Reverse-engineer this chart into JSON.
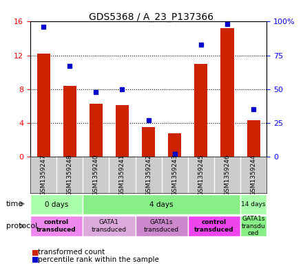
{
  "title": "GDS5368 / A_23_P137366",
  "samples": [
    "GSM1359247",
    "GSM1359248",
    "GSM1359240",
    "GSM1359241",
    "GSM1359242",
    "GSM1359243",
    "GSM1359245",
    "GSM1359246",
    "GSM1359244"
  ],
  "transformed_counts": [
    12.2,
    8.4,
    6.3,
    6.1,
    3.5,
    2.8,
    11.0,
    15.2,
    4.3
  ],
  "percentile_ranks": [
    96,
    67,
    48,
    50,
    27,
    2,
    83,
    98,
    35
  ],
  "ylim_left": [
    0,
    16
  ],
  "ylim_right": [
    0,
    100
  ],
  "yticks_left": [
    0,
    4,
    8,
    12,
    16
  ],
  "yticks_right": [
    0,
    25,
    50,
    75,
    100
  ],
  "ytick_labels_right": [
    "0",
    "25",
    "50",
    "75",
    "100%"
  ],
  "bar_color": "#cc2200",
  "dot_color": "#0000cc",
  "time_groups": [
    {
      "label": "0 days",
      "start": 0,
      "end": 2,
      "color": "#aaffaa"
    },
    {
      "label": "4 days",
      "start": 2,
      "end": 8,
      "color": "#88ee88"
    },
    {
      "label": "14 days",
      "start": 8,
      "end": 9,
      "color": "#aaffaa"
    }
  ],
  "protocol_groups": [
    {
      "label": "control\ntransduced",
      "start": 0,
      "end": 2,
      "color": "#ee88ee",
      "bold": true
    },
    {
      "label": "GATA1\ntransduced",
      "start": 2,
      "end": 4,
      "color": "#ddaadd",
      "bold": false
    },
    {
      "label": "GATA1s\ntransduced",
      "start": 4,
      "end": 6,
      "color": "#ee88ee",
      "bold": false
    },
    {
      "label": "control\ntransduced",
      "start": 6,
      "end": 8,
      "color": "#ee44ee",
      "bold": true
    },
    {
      "label": "GATA1s\ntransdu\nced",
      "start": 8,
      "end": 9,
      "color": "#aaffaa",
      "bold": false
    }
  ],
  "legend_items": [
    {
      "label": "transformed count",
      "color": "#cc2200",
      "marker": "s"
    },
    {
      "label": "percentile rank within the sample",
      "color": "#0000cc",
      "marker": "s"
    }
  ],
  "background_color": "#ffffff",
  "grid_color": "#000000",
  "label_area_color": "#cccccc"
}
